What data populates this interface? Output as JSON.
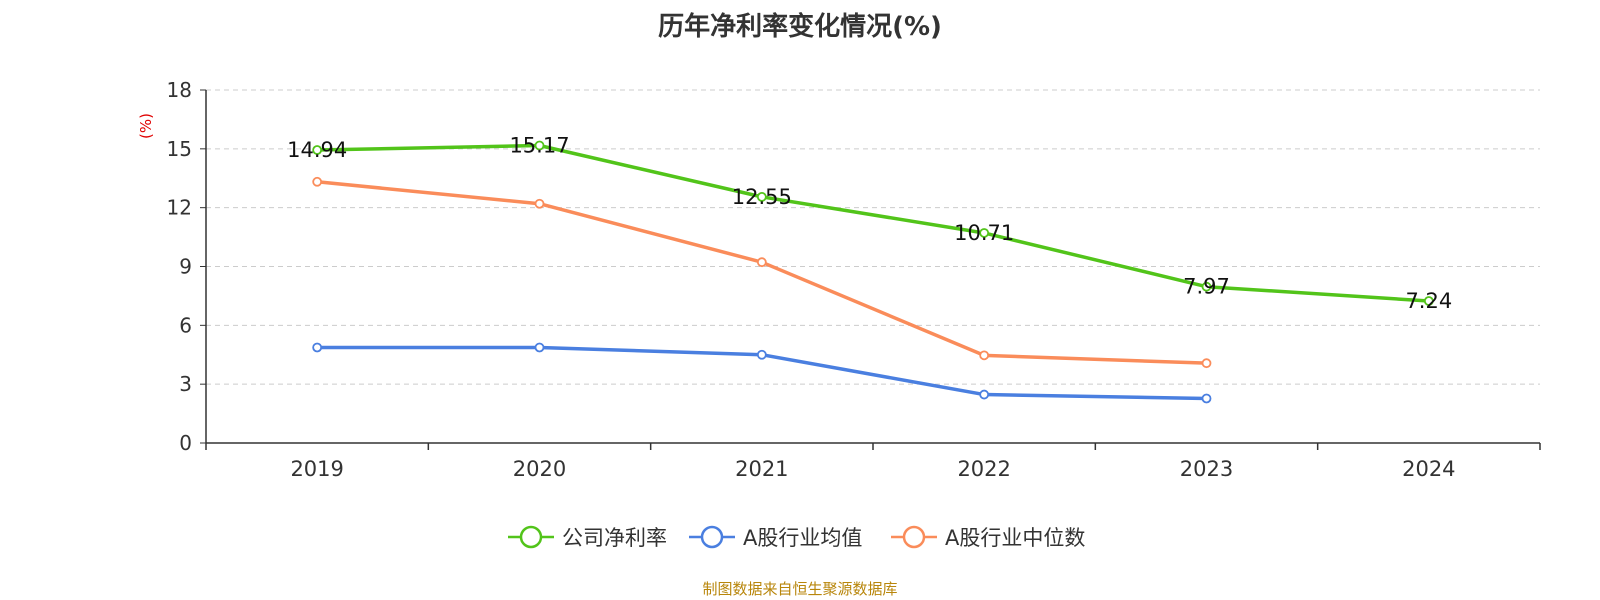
{
  "chart_data": {
    "type": "line",
    "title": "历年净利率变化情况(%)",
    "ylabel": "(%)",
    "xlabel": "",
    "categories": [
      "2019",
      "2020",
      "2021",
      "2022",
      "2023",
      "2024"
    ],
    "ylim": [
      0,
      18
    ],
    "yticks": [
      0,
      3,
      6,
      9,
      12,
      15,
      18
    ],
    "grid": true,
    "legend_position": "bottom",
    "series": [
      {
        "name": "公司净利率",
        "color": "#52c41a",
        "values": [
          14.94,
          15.17,
          12.55,
          10.71,
          7.97,
          7.24
        ],
        "labels": [
          "14.94",
          "15.17",
          "12.55",
          "10.71",
          "7.97",
          "7.24"
        ]
      },
      {
        "name": "A股行业均值",
        "color": "#4a7fe0",
        "values": [
          4.87,
          4.87,
          4.5,
          2.47,
          2.27,
          null
        ]
      },
      {
        "name": "A股行业中位数",
        "color": "#fa8c5a",
        "values": [
          13.32,
          12.2,
          9.22,
          4.47,
          4.07,
          null
        ]
      }
    ]
  },
  "footer": {
    "source": "制图数据来自恒生聚源数据库"
  }
}
